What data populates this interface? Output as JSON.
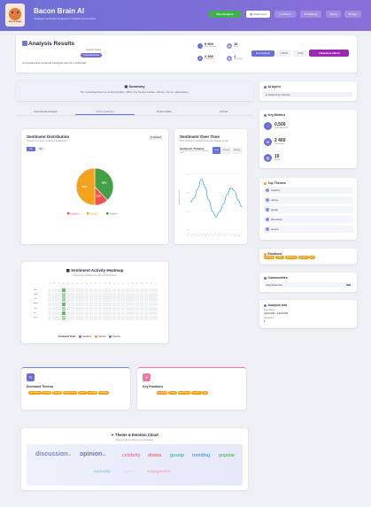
{
  "header": {
    "title": "Bacon Brain AI",
    "subtitle": "Intelligent sentiment analysis for Reddit communities",
    "logo_caption": "BACON BRAIN",
    "buttons": [
      "New Analysis",
      "Dashboard",
      "History",
      "Settings",
      "About",
      "Privacy"
    ]
  },
  "results": {
    "title": "Analysis Results",
    "status_label": "Analysis Status",
    "status_value": "r/popculturechat",
    "description": "Comprehensive sentiment analysis across 1 subreddit",
    "stats": [
      {
        "value": "0.500",
        "label": "Avg Sentiment",
        "icon": "chart-icon"
      },
      {
        "value": "16",
        "label": "Posts",
        "icon": "posts-icon"
      },
      {
        "value": "2 460",
        "label": "Comments",
        "icon": "comments-icon"
      },
      {
        "value": "1",
        "label": "Subreddits",
        "icon": "subreddit-icon"
      }
    ],
    "actions": [
      "New Analysis",
      "JSON",
      "CSV",
      "Reanalyze with AI"
    ]
  },
  "summary": {
    "title": "Summary",
    "text": "The overall sentiment is neutral (positive: 38%). Key themes include: criticism, humor, appreciation."
  },
  "tabs": [
    "Frameworks Analysis",
    "Charts & Metrics",
    "Posts & Data",
    "AI Chat"
  ],
  "active_tab": 1,
  "distribution": {
    "title": "Sentiment Distribution",
    "subtitle": "Overall community sentiment breakdown",
    "badge": "AI Validated",
    "toggle": [
      "Pie",
      "Bar"
    ]
  },
  "over_time": {
    "title": "Sentiment Over Time",
    "subtitle": "How sentiment evolved during the analysis period",
    "timeline_label": "Sentiment Timeline",
    "timeline_sub": "Track how sentiment evolved over time",
    "toggles": [
      "Daily",
      "Weekly",
      "Monthly"
    ],
    "ylabel": "Sentiment Score"
  },
  "chart_data": [
    {
      "type": "pie",
      "categories": [
        "Negative",
        "Neutral",
        "Positive"
      ],
      "values": [
        12,
        50,
        38
      ],
      "colors": [
        "#ef5350",
        "#f5a21f",
        "#43a047"
      ],
      "labels": [
        "12%",
        "50%",
        "38%"
      ]
    },
    {
      "type": "line",
      "x": [
        "Apr 01",
        "Apr 02",
        "Apr 03",
        "Apr 04",
        "Apr 05",
        "Apr 06",
        "Apr 07",
        "Apr 08",
        "Apr 09",
        "Apr 10",
        "Apr 11",
        "Apr 12",
        "Apr 13",
        "Apr 14",
        "Apr 15"
      ],
      "series": [
        {
          "values": [
            0.1,
            0.14,
            0.24,
            0.35,
            0.26,
            0.12,
            0.0,
            -0.06,
            0.0,
            0.08,
            0.18,
            0.25,
            0.22,
            0.12,
            0.05
          ]
        }
      ],
      "ylim": [
        -0.2,
        0.5
      ],
      "ylabel": "Sentiment Score",
      "color": "#42a5f5"
    }
  ],
  "heatmap": {
    "title": "Sentiment Activity Heatmap",
    "subtitle": "Community sentiment by day & hour of posts",
    "days": [
      "Sun",
      "Mon",
      "Tue",
      "Wed",
      "Thu",
      "Fri",
      "Sat"
    ],
    "hours": [
      "00",
      "01",
      "02",
      "03",
      "04",
      "05",
      "06",
      "07",
      "08",
      "09",
      "10",
      "11",
      "12",
      "13",
      "14",
      "15",
      "16",
      "17",
      "18",
      "19",
      "20",
      "21",
      "22",
      "23"
    ],
    "active_cells": [
      {
        "day": 0,
        "hour": 3,
        "level": "positive"
      },
      {
        "day": 1,
        "hour": 3,
        "level": "neutral"
      },
      {
        "day": 2,
        "hour": 3,
        "level": "neutral"
      },
      {
        "day": 3,
        "hour": 3,
        "level": "positive"
      },
      {
        "day": 4,
        "hour": 3,
        "level": "neutral"
      },
      {
        "day": 5,
        "hour": 3,
        "level": "positive"
      },
      {
        "day": 6,
        "hour": 3,
        "level": "neutral"
      }
    ],
    "legend_title": "Sentiment Scale",
    "legend": [
      {
        "label": "Negative",
        "color": "#ef5350"
      },
      {
        "label": "Neutral",
        "color": "#f5a21f"
      },
      {
        "label": "Positive",
        "color": "#43a047"
      }
    ]
  },
  "dominant_themes": {
    "title": "Dominant Themes",
    "items": [
      "discussion",
      "opinion",
      "popular",
      "controversial",
      "drama",
      "trending",
      "celebrity"
    ]
  },
  "key_emotions": {
    "title": "Key Emotions",
    "items": [
      "curiosity",
      "humor",
      "excitement",
      "surprise",
      "joy"
    ]
  },
  "cloud": {
    "title": "Theme & Emotion Cloud",
    "subtitle": "Most mentioned themes and emotions",
    "words": [
      {
        "text": "discussion",
        "count": "x4",
        "color": "#7c84d6",
        "size": 7
      },
      {
        "text": "opinion",
        "count": "x3",
        "color": "#6c6fd6",
        "size": 7
      },
      {
        "text": "celebrity",
        "color": "#ef77a9",
        "size": 5
      },
      {
        "text": "drama",
        "color": "#ef6f6f",
        "size": 5
      },
      {
        "text": "gossip",
        "color": "#4db6ac",
        "size": 5
      },
      {
        "text": "trending",
        "color": "#42a5f5",
        "size": 5
      },
      {
        "text": "popular",
        "color": "#66bb6a",
        "size": 5
      },
      {
        "text": "curiosity",
        "color": "#81d4cf",
        "size": 4.5
      },
      {
        "text": "humor",
        "color": "#e1d7f3",
        "size": 4.5
      },
      {
        "text": "engagement",
        "color": "#f4a6c8",
        "size": 4.5
      }
    ]
  },
  "sidebar": {
    "ai_agent": {
      "title": "AI Agent",
      "value": "Analyzed by Unknown"
    },
    "key_metrics": {
      "title": "Key Metrics",
      "items": [
        {
          "value": "0.500",
          "label": "Avg Sentiment"
        },
        {
          "value": "2 460",
          "label": "Comments"
        },
        {
          "value": "16",
          "label": "Posts"
        }
      ]
    },
    "top_themes": {
      "title": "Top Themes",
      "items": [
        "celebrity",
        "drama",
        "gossip",
        "discussion",
        "opinion"
      ]
    },
    "emotions": {
      "title": "Emotions",
      "items": [
        "curiosity",
        "humor",
        "excitement",
        "surprise",
        "joy"
      ]
    },
    "communities": {
      "title": "Communities",
      "name": "r/popculturechat",
      "count": "16"
    },
    "analysis_info": {
      "title": "Analysis Info",
      "date_range_label": "Date Range",
      "date_range": "04/01/2025 - 04/15/2025",
      "subs_label": "Subreddits",
      "subs_value": "1"
    }
  }
}
